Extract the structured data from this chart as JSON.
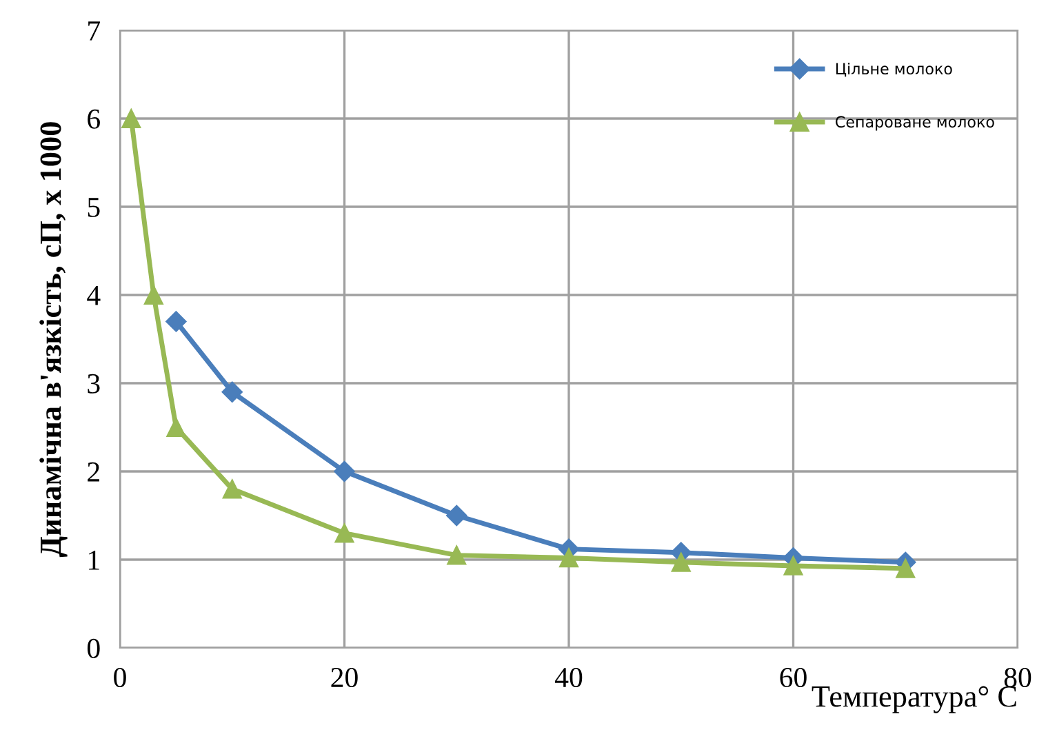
{
  "chart_data": {
    "type": "line",
    "xlabel": "Температура° С",
    "ylabel": "Динамічна в'язкість, сП, х 1000",
    "series": [
      {
        "name": "Цільне молоко",
        "color": "#4a7ebb",
        "marker": "diamond",
        "x": [
          5,
          10,
          20,
          30,
          40,
          50,
          60,
          70
        ],
        "values": [
          3.7,
          2.9,
          2.0,
          1.5,
          1.12,
          1.08,
          1.02,
          0.97
        ]
      },
      {
        "name": "Сепароване молоко",
        "color": "#98b954",
        "marker": "triangle",
        "x": [
          1,
          3,
          5,
          10,
          20,
          30,
          40,
          50,
          60,
          70
        ],
        "values": [
          6.0,
          4.0,
          2.5,
          1.8,
          1.3,
          1.05,
          1.02,
          0.97,
          0.93,
          0.9
        ]
      }
    ],
    "xlim": [
      0,
      80
    ],
    "xticks": [
      0,
      20,
      40,
      60,
      80
    ],
    "ylim": [
      0,
      7
    ],
    "yticks": [
      0,
      1,
      2,
      3,
      4,
      5,
      6,
      7
    ],
    "grid": true,
    "legend": "top right",
    "line_style": "solid"
  }
}
